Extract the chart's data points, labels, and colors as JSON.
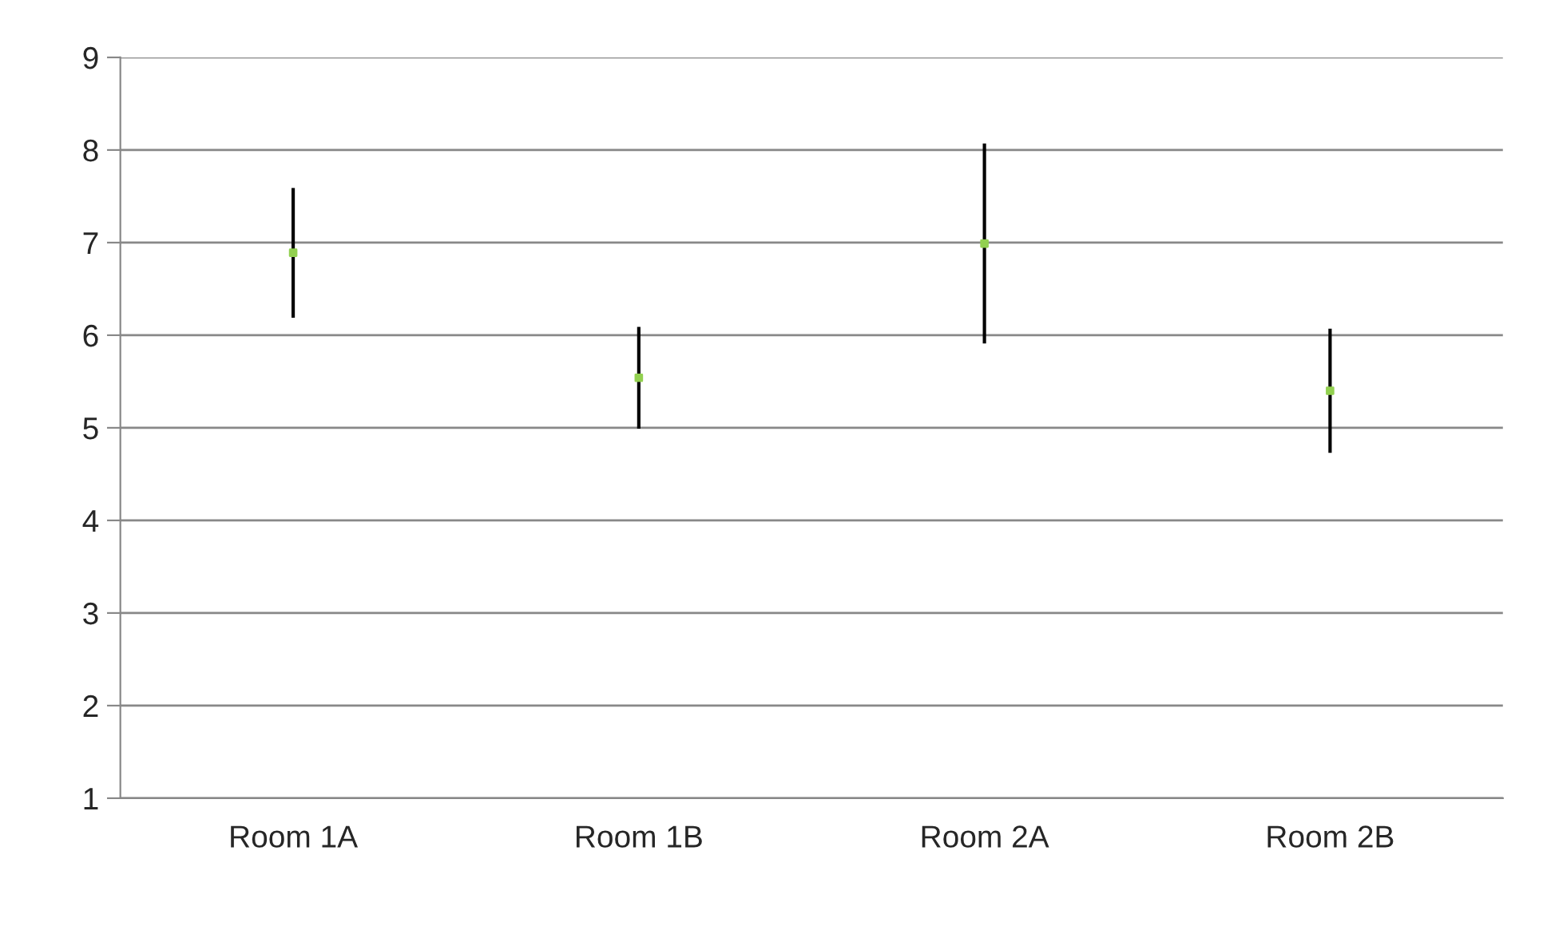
{
  "chart_data": {
    "type": "scatter",
    "categories": [
      "Room 1A",
      "Room 1B",
      "Room 2A",
      "Room 2B"
    ],
    "series": [
      {
        "color": "#92d050",
        "values": [
          6.89,
          5.54,
          6.99,
          5.4
        ],
        "errors": [
          0.7,
          0.55,
          1.08,
          0.67
        ]
      }
    ],
    "ylim": [
      1,
      9
    ],
    "yticks": [
      1,
      2,
      3,
      4,
      5,
      6,
      7,
      8,
      9
    ],
    "grid": "y",
    "marker": "square"
  }
}
